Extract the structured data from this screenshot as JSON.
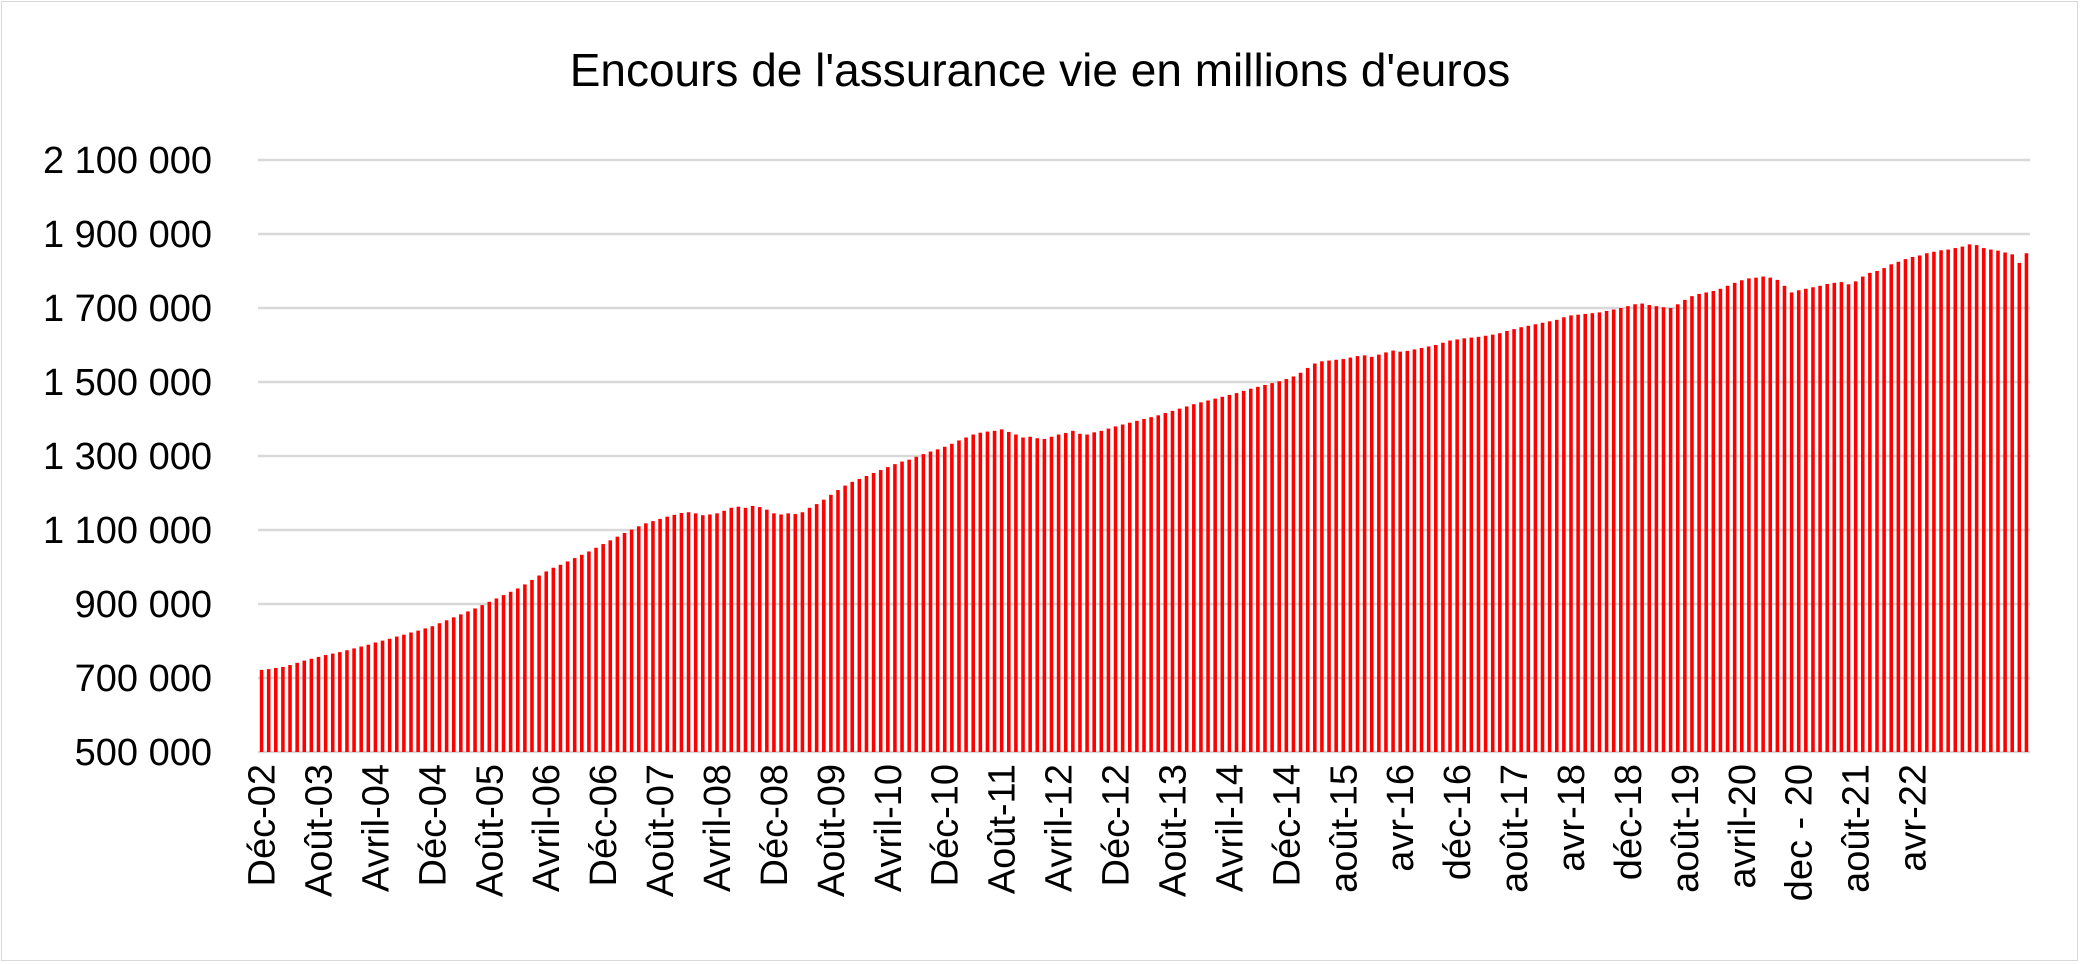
{
  "chart_data": {
    "type": "bar",
    "title": "Encours de l'assurance vie en millions d'euros",
    "xlabel": "",
    "ylabel": "",
    "ylim": [
      500000,
      2100000
    ],
    "yticks": [
      500000,
      700000,
      900000,
      1100000,
      1300000,
      1500000,
      1700000,
      1900000,
      2100000
    ],
    "ytick_labels": [
      "500 000",
      "700 000",
      "900 000",
      "1 100 000",
      "1 300 000",
      "1 500 000",
      "1 700 000",
      "1 900 000",
      "2 100 000"
    ],
    "grid": true,
    "legend": "none",
    "bar_color": "#ff0000",
    "tick_labels": [
      {
        "label": "Déc-02",
        "index": 0
      },
      {
        "label": "Août-03",
        "index": 8
      },
      {
        "label": "Avril-04",
        "index": 16
      },
      {
        "label": "Déc-04",
        "index": 24
      },
      {
        "label": "Août-05",
        "index": 32
      },
      {
        "label": "Avril-06",
        "index": 40
      },
      {
        "label": "Déc-06",
        "index": 48
      },
      {
        "label": "Août-07",
        "index": 56
      },
      {
        "label": "Avril-08",
        "index": 64
      },
      {
        "label": "Déc-08",
        "index": 72
      },
      {
        "label": "Août-09",
        "index": 80
      },
      {
        "label": "Avril-10",
        "index": 88
      },
      {
        "label": "Déc-10",
        "index": 96
      },
      {
        "label": "Août-11",
        "index": 104
      },
      {
        "label": "Avril-12",
        "index": 112
      },
      {
        "label": "Déc-12",
        "index": 120
      },
      {
        "label": "Août-13",
        "index": 128
      },
      {
        "label": "Avril-14",
        "index": 136
      },
      {
        "label": "Déc-14",
        "index": 144
      },
      {
        "label": "août-15",
        "index": 152
      },
      {
        "label": "avr-16",
        "index": 160
      },
      {
        "label": "déc-16",
        "index": 168
      },
      {
        "label": "août-17",
        "index": 176
      },
      {
        "label": "avr-18",
        "index": 184
      },
      {
        "label": "déc-18",
        "index": 192
      },
      {
        "label": "août-19",
        "index": 200
      },
      {
        "label": "avril-20",
        "index": 208
      },
      {
        "label": "dec - 20",
        "index": 216
      },
      {
        "label": "août-21",
        "index": 224
      },
      {
        "label": "avr-22",
        "index": 232
      }
    ],
    "values": [
      722000,
      724000,
      727000,
      730000,
      735000,
      741000,
      747000,
      752000,
      757000,
      762000,
      766000,
      770000,
      775000,
      780000,
      785000,
      790000,
      796000,
      801000,
      806000,
      812000,
      817000,
      823000,
      828000,
      834000,
      840000,
      848000,
      856000,
      864000,
      872000,
      880000,
      888000,
      897000,
      906000,
      915000,
      924000,
      933000,
      942000,
      953000,
      965000,
      977000,
      988000,
      998000,
      1006000,
      1015000,
      1024000,
      1033000,
      1042000,
      1052000,
      1062000,
      1072000,
      1082000,
      1092000,
      1101000,
      1110000,
      1118000,
      1124000,
      1130000,
      1136000,
      1141000,
      1146000,
      1148000,
      1145000,
      1140000,
      1142000,
      1145000,
      1152000,
      1160000,
      1163000,
      1160000,
      1165000,
      1162000,
      1155000,
      1145000,
      1142000,
      1145000,
      1143000,
      1148000,
      1160000,
      1170000,
      1182000,
      1195000,
      1208000,
      1220000,
      1230000,
      1238000,
      1246000,
      1254000,
      1262000,
      1270000,
      1278000,
      1285000,
      1290000,
      1298000,
      1305000,
      1312000,
      1318000,
      1325000,
      1333000,
      1342000,
      1350000,
      1358000,
      1363000,
      1366000,
      1368000,
      1372000,
      1365000,
      1358000,
      1350000,
      1352000,
      1348000,
      1346000,
      1352000,
      1358000,
      1362000,
      1368000,
      1360000,
      1358000,
      1364000,
      1368000,
      1374000,
      1380000,
      1385000,
      1390000,
      1395000,
      1400000,
      1405000,
      1410000,
      1416000,
      1422000,
      1428000,
      1434000,
      1440000,
      1445000,
      1450000,
      1455000,
      1460000,
      1465000,
      1470000,
      1476000,
      1482000,
      1487000,
      1492000,
      1497000,
      1502000,
      1508000,
      1515000,
      1525000,
      1538000,
      1550000,
      1556000,
      1558000,
      1560000,
      1562000,
      1566000,
      1570000,
      1572000,
      1568000,
      1574000,
      1580000,
      1585000,
      1582000,
      1584000,
      1588000,
      1592000,
      1596000,
      1600000,
      1606000,
      1612000,
      1615000,
      1618000,
      1620000,
      1622000,
      1625000,
      1628000,
      1632000,
      1638000,
      1643000,
      1648000,
      1652000,
      1656000,
      1660000,
      1664000,
      1668000,
      1675000,
      1680000,
      1682000,
      1684000,
      1686000,
      1688000,
      1692000,
      1696000,
      1700000,
      1705000,
      1710000,
      1712000,
      1708000,
      1705000,
      1702000,
      1700000,
      1710000,
      1722000,
      1732000,
      1738000,
      1742000,
      1746000,
      1752000,
      1760000,
      1768000,
      1775000,
      1780000,
      1782000,
      1785000,
      1782000,
      1776000,
      1760000,
      1742000,
      1748000,
      1752000,
      1756000,
      1760000,
      1765000,
      1768000,
      1770000,
      1764000,
      1772000,
      1785000,
      1795000,
      1800000,
      1808000,
      1818000,
      1825000,
      1832000,
      1838000,
      1842000,
      1848000,
      1852000,
      1856000,
      1858000,
      1862000,
      1866000,
      1872000,
      1870000,
      1862000,
      1858000,
      1855000,
      1850000,
      1845000,
      1822000,
      1848000
    ]
  }
}
